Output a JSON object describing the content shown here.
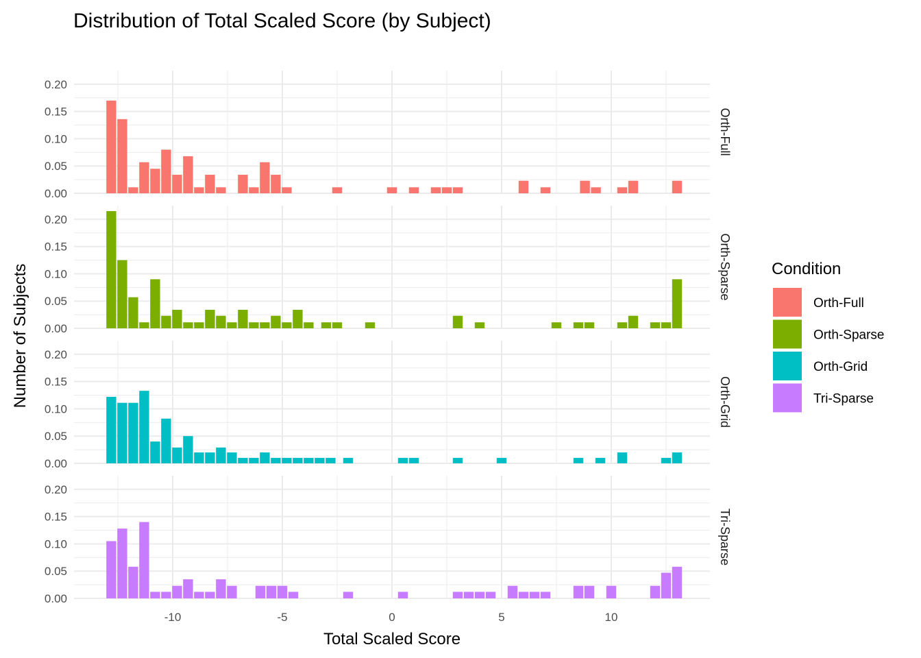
{
  "chart_data": {
    "type": "bar",
    "title": "Distribution of Total Scaled Score (by Subject)",
    "xlabel": "Total Scaled Score",
    "ylabel": "Number of Subjects",
    "xlim": [
      -14.5,
      14.5
    ],
    "ylim": [
      0,
      0.225
    ],
    "x_ticks": [
      -10,
      -5,
      0,
      5,
      10
    ],
    "x_tick_labels": [
      "-10",
      "-5",
      "0",
      "5",
      "10"
    ],
    "y_ticks": [
      0,
      0.05,
      0.1,
      0.15,
      0.2
    ],
    "y_tick_labels": [
      "0.00",
      "0.05",
      "0.10",
      "0.15",
      "0.20"
    ],
    "bin_width": 0.5,
    "grid": true,
    "legend": {
      "title": "Condition",
      "position": "right"
    },
    "series": [
      {
        "name": "Orth-Full",
        "color": "#F8766D",
        "x": [
          -12.8,
          -12.3,
          -11.8,
          -11.3,
          -10.8,
          -10.3,
          -9.8,
          -9.3,
          -8.8,
          -8.3,
          -7.8,
          -6.8,
          -6.3,
          -5.8,
          -5.3,
          -4.8,
          -2.5,
          0,
          1,
          2,
          2.5,
          3,
          6,
          7,
          8.8,
          9.3,
          10.5,
          11,
          13
        ],
        "values": [
          0.17,
          0.136,
          0.011,
          0.057,
          0.045,
          0.08,
          0.034,
          0.068,
          0.011,
          0.034,
          0.011,
          0.034,
          0.011,
          0.057,
          0.034,
          0.011,
          0.011,
          0.011,
          0.011,
          0.011,
          0.011,
          0.011,
          0.023,
          0.011,
          0.023,
          0.011,
          0.011,
          0.023,
          0.023
        ]
      },
      {
        "name": "Orth-Sparse",
        "color": "#7CAE00",
        "x": [
          -12.8,
          -12.3,
          -11.8,
          -11.3,
          -10.8,
          -10.3,
          -9.8,
          -9.3,
          -8.8,
          -8.3,
          -7.8,
          -7.3,
          -6.8,
          -6.3,
          -5.8,
          -5.3,
          -4.8,
          -4.3,
          -3.8,
          -3,
          -2.5,
          -1,
          3,
          4,
          7.5,
          8.5,
          9,
          10.5,
          11,
          12,
          12.5,
          13
        ],
        "values": [
          0.215,
          0.125,
          0.057,
          0.011,
          0.09,
          0.023,
          0.034,
          0.011,
          0.011,
          0.034,
          0.023,
          0.011,
          0.034,
          0.011,
          0.011,
          0.023,
          0.011,
          0.034,
          0.011,
          0.011,
          0.011,
          0.011,
          0.023,
          0.011,
          0.011,
          0.011,
          0.011,
          0.011,
          0.023,
          0.011,
          0.011,
          0.09
        ]
      },
      {
        "name": "Orth-Grid",
        "color": "#00BFC4",
        "x": [
          -12.8,
          -12.3,
          -11.8,
          -11.3,
          -10.8,
          -10.3,
          -9.8,
          -9.3,
          -8.8,
          -8.3,
          -7.8,
          -7.3,
          -6.8,
          -6.3,
          -5.8,
          -5.3,
          -4.8,
          -4.3,
          -3.8,
          -3.3,
          -2.8,
          -2,
          0.5,
          1,
          3,
          5,
          8.5,
          9.5,
          10.5,
          12.5,
          13
        ],
        "values": [
          0.122,
          0.111,
          0.111,
          0.133,
          0.04,
          0.082,
          0.029,
          0.05,
          0.02,
          0.02,
          0.029,
          0.02,
          0.01,
          0.01,
          0.02,
          0.01,
          0.01,
          0.01,
          0.01,
          0.01,
          0.01,
          0.01,
          0.01,
          0.01,
          0.01,
          0.01,
          0.01,
          0.01,
          0.02,
          0.01,
          0.02
        ]
      },
      {
        "name": "Tri-Sparse",
        "color": "#C77CFF",
        "x": [
          -12.8,
          -12.3,
          -11.8,
          -11.3,
          -10.8,
          -10.3,
          -9.8,
          -9.3,
          -8.8,
          -8.3,
          -7.8,
          -7.3,
          -6,
          -5.5,
          -5,
          -4.5,
          -2,
          0.5,
          3,
          3.5,
          4,
          4.5,
          5.5,
          6,
          6.5,
          7,
          8.5,
          9,
          10,
          12,
          12.5,
          13
        ],
        "values": [
          0.105,
          0.128,
          0.058,
          0.14,
          0.012,
          0.012,
          0.023,
          0.035,
          0.012,
          0.012,
          0.035,
          0.023,
          0.023,
          0.023,
          0.023,
          0.012,
          0.012,
          0.012,
          0.012,
          0.012,
          0.012,
          0.012,
          0.023,
          0.012,
          0.012,
          0.012,
          0.023,
          0.023,
          0.023,
          0.023,
          0.047,
          0.058
        ]
      }
    ]
  }
}
